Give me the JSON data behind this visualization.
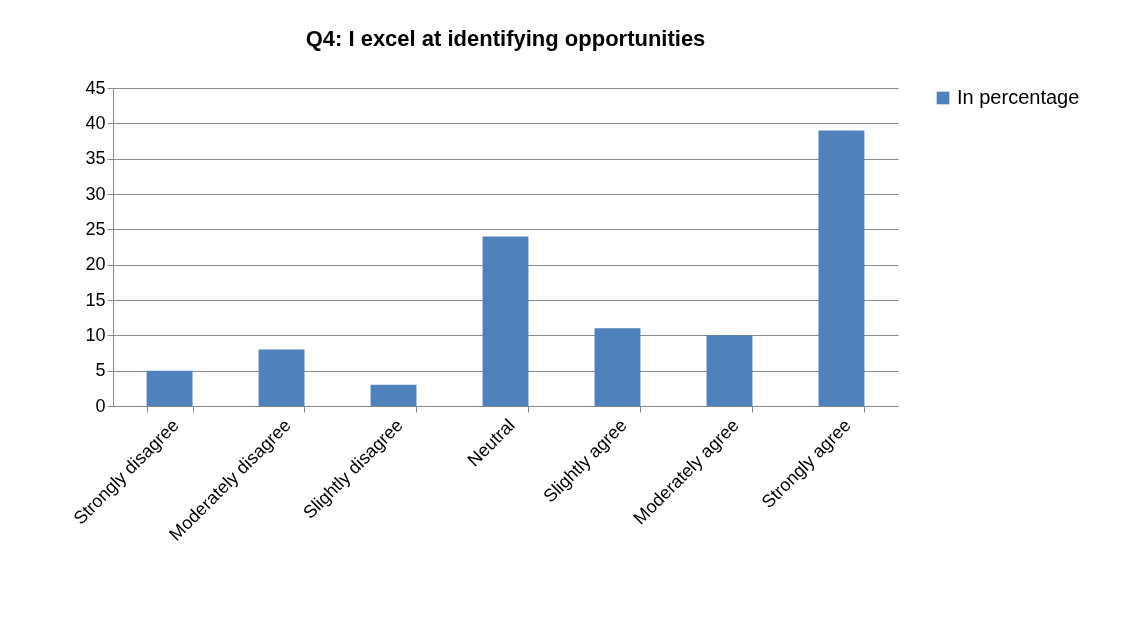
{
  "chart_data": {
    "type": "bar",
    "title": "Q4: I excel at identifying opportunities",
    "categories": [
      "Strongly disagree",
      "Moderately disagree",
      "Slightly disagree",
      "Neutral",
      "Slightly agree",
      "Moderately agree",
      "Strongly agree"
    ],
    "series": [
      {
        "name": "In percentage",
        "color": "#4f81bd",
        "values": [
          5,
          8,
          3,
          24,
          11,
          10,
          39
        ]
      }
    ],
    "ylim": [
      0,
      45
    ],
    "yticks": [
      0,
      5,
      10,
      15,
      20,
      25,
      30,
      35,
      40,
      45
    ],
    "grid": "y",
    "legend": "right"
  }
}
